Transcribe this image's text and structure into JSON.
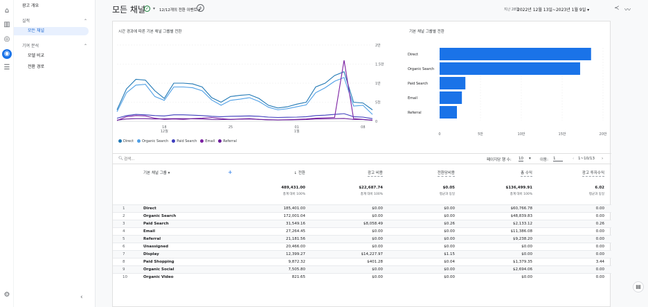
{
  "sidebar": {
    "items": [
      {
        "label": "광고 개요",
        "kind": "top"
      },
      {
        "label": "실적",
        "kind": "section"
      },
      {
        "label": "모든 채널",
        "kind": "selected"
      },
      {
        "label": "기여 분석",
        "kind": "section"
      },
      {
        "label": "모델 비교",
        "kind": "sub"
      },
      {
        "label": "전환 경로",
        "kind": "sub"
      }
    ],
    "collapse_icon": "chevron-left-icon"
  },
  "rail_icons": [
    "home-icon",
    "reports-icon",
    "explore-icon",
    "advertising-icon",
    "list-icon",
    "settings-icon"
  ],
  "header": {
    "title": "모든 채널",
    "events": "12/12개의 전환 이벤트 ▾",
    "date_label": "지난 28일",
    "date_range": "2022년 12월 13일~2023년 1월 9일 ▾"
  },
  "line_chart_title": "시간 경과에 따른 기본 채널 그룹별 전환",
  "bar_chart_title": "기본 채널 그룹별 전환",
  "chart_data": [
    {
      "type": "line",
      "title": "시간 경과에 따른 기본 채널 그룹별 전환",
      "x_ticks": [
        {
          "label": "18",
          "sub": "12월",
          "i": 5
        },
        {
          "label": "25",
          "sub": "",
          "i": 12
        },
        {
          "label": "01",
          "sub": "1월",
          "i": 19
        },
        {
          "label": "08",
          "sub": "",
          "i": 26
        }
      ],
      "y_ticks": [
        "0",
        "5천",
        "1만",
        "1.5만",
        "2만"
      ],
      "ylim": [
        0,
        20000
      ],
      "series": [
        {
          "name": "Direct",
          "color": "#1f77b4",
          "values": [
            3000,
            8500,
            11000,
            10800,
            8000,
            6000,
            10000,
            10000,
            9800,
            9000,
            6200,
            5000,
            6500,
            6800,
            7000,
            6000,
            4200,
            3500,
            3800,
            4500,
            5000,
            9000,
            10000,
            12000,
            13000,
            5000,
            4800,
            3000
          ]
        },
        {
          "name": "Organic Search",
          "color": "#4e9fe6",
          "values": [
            2500,
            7500,
            9500,
            9700,
            6500,
            5500,
            9000,
            9000,
            8800,
            8000,
            5600,
            4200,
            5500,
            5800,
            6200,
            5200,
            3700,
            3000,
            3300,
            3800,
            4300,
            7500,
            8800,
            10500,
            11500,
            4000,
            4200,
            1800
          ]
        },
        {
          "name": "Paid Search",
          "color": "#3d3dbd",
          "values": [
            800,
            1500,
            1800,
            1700,
            1500,
            1400,
            1700,
            1700,
            1600,
            1500,
            1300,
            1200,
            1300,
            1350,
            1400,
            1300,
            1100,
            1000,
            1050,
            1100,
            1200,
            1500,
            1600,
            1800,
            2000,
            1200,
            1100,
            700
          ]
        },
        {
          "name": "Email",
          "color": "#7b1fa2",
          "values": [
            200,
            1200,
            1500,
            1400,
            800,
            500,
            600,
            500,
            700,
            800,
            1000,
            700,
            500,
            600,
            700,
            500,
            400,
            350,
            400,
            500,
            600,
            800,
            900,
            1000,
            16000,
            700,
            500,
            300
          ]
        },
        {
          "name": "Referral",
          "color": "#6a1b9a",
          "values": [
            300,
            600,
            700,
            700,
            600,
            650,
            700,
            700,
            650,
            600,
            500,
            450,
            500,
            550,
            600,
            500,
            400,
            350,
            380,
            420,
            450,
            600,
            650,
            700,
            750,
            500,
            450,
            250
          ]
        }
      ]
    },
    {
      "type": "bar",
      "title": "기본 채널 그룹별 전환",
      "categories": [
        "Direct",
        "Organic Search",
        "Paid Search",
        "Email",
        "Referral"
      ],
      "values": [
        185401,
        172001.04,
        31549.16,
        27264.45,
        21181.56
      ],
      "x_ticks": [
        "0",
        "5만",
        "10만",
        "15만",
        "20만"
      ],
      "xlim": [
        0,
        200000
      ],
      "color": "#1a73e8"
    }
  ],
  "table": {
    "search_placeholder": "검색...",
    "rows_per_page_label": "페이지당 행 수:",
    "rows_per_page": "10",
    "goto_label": "이동:",
    "goto_value": "1",
    "range": "1~10/13",
    "dim_header": "기본 채널 그룹 ▾",
    "columns": [
      "↓ 전환",
      "광고 비용",
      "전환당비용",
      "총 수익",
      "광고 투자수익"
    ],
    "totals": [
      {
        "value": "489,431.00",
        "sub": "총계 대비 100%"
      },
      {
        "value": "$22,687.74",
        "sub": "총계 대비 100%"
      },
      {
        "value": "$0.05",
        "sub": "평균과 동일"
      },
      {
        "value": "$136,499.91",
        "sub": "총계 대비 100%"
      },
      {
        "value": "6.02",
        "sub": "평균과 동일"
      }
    ],
    "rows": [
      [
        "1",
        "Direct",
        "185,401.00",
        "$0.00",
        "$0.00",
        "$60,766.78",
        "0.00"
      ],
      [
        "2",
        "Organic Search",
        "172,001.04",
        "$0.00",
        "$0.00",
        "$48,839.83",
        "0.00"
      ],
      [
        "3",
        "Paid Search",
        "31,549.16",
        "$8,058.49",
        "$0.26",
        "$2,133.12",
        "0.26"
      ],
      [
        "4",
        "Email",
        "27,264.45",
        "$0.00",
        "$0.00",
        "$11,386.08",
        "0.00"
      ],
      [
        "5",
        "Referral",
        "21,181.56",
        "$0.00",
        "$0.00",
        "$9,238.20",
        "0.00"
      ],
      [
        "6",
        "Unassigned",
        "20,466.00",
        "$0.00",
        "$0.00",
        "$0.00",
        "0.00"
      ],
      [
        "7",
        "Display",
        "12,399.27",
        "$14,227.97",
        "$1.15",
        "$0.00",
        "0.00"
      ],
      [
        "8",
        "Paid Shopping",
        "9,872.32",
        "$401.28",
        "$0.04",
        "$1,379.35",
        "3.44"
      ],
      [
        "9",
        "Organic Social",
        "7,505.80",
        "$0.00",
        "$0.00",
        "$2,694.06",
        "0.00"
      ],
      [
        "10",
        "Organic Video",
        "821.65",
        "$0.00",
        "$0.00",
        "$0.00",
        "0.00"
      ]
    ]
  }
}
